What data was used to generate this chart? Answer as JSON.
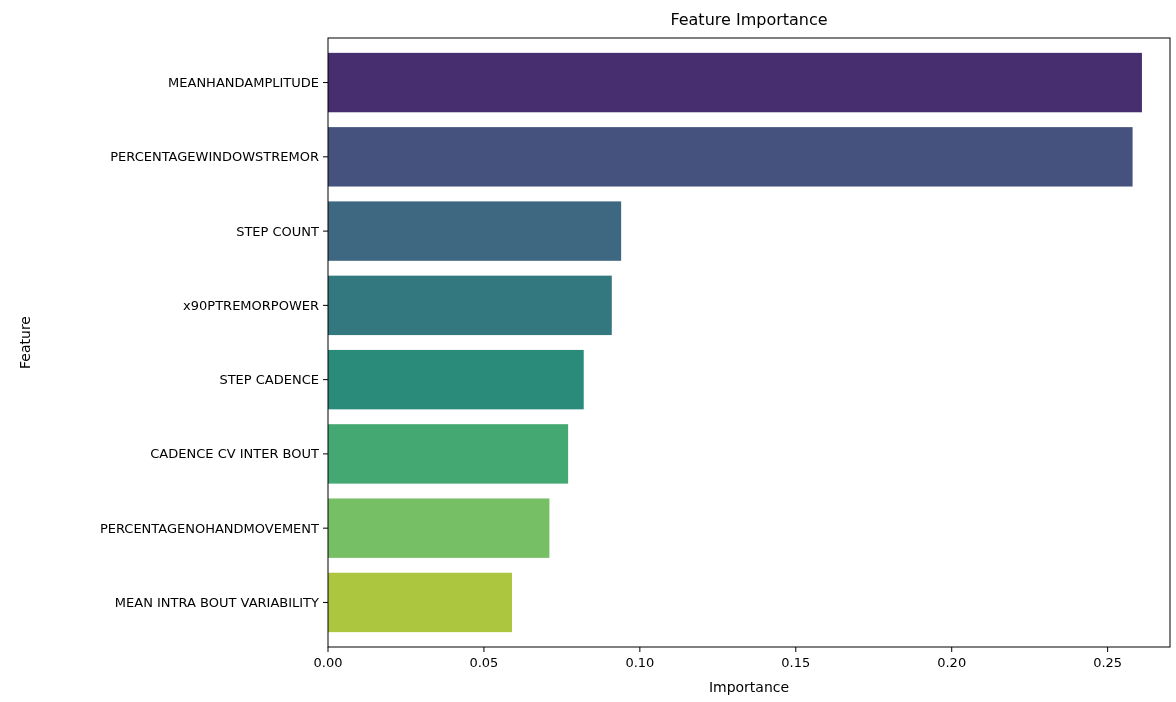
{
  "chart_data": {
    "type": "bar",
    "orientation": "horizontal",
    "title": "Feature Importance",
    "xlabel": "Importance",
    "ylabel": "Feature",
    "categories": [
      "MEANHANDAMPLITUDE",
      "PERCENTAGEWINDOWSTREMOR",
      "STEP COUNT",
      "x90PTREMORPOWER",
      "STEP CADENCE",
      "CADENCE CV INTER BOUT",
      "PERCENTAGENOHANDMOVEMENT",
      "MEAN INTRA BOUT VARIABILITY"
    ],
    "values": [
      0.261,
      0.258,
      0.094,
      0.091,
      0.082,
      0.077,
      0.071,
      0.059
    ],
    "colors": [
      "#472e6e",
      "#46527e",
      "#3e6782",
      "#33777f",
      "#2a8b7a",
      "#44a873",
      "#77bf64",
      "#adc640"
    ],
    "xlim": [
      0,
      0.27
    ],
    "xticks": [
      {
        "value": 0,
        "label": "0.00"
      },
      {
        "value": 0.05,
        "label": "0.05"
      },
      {
        "value": 0.1,
        "label": "0.10"
      },
      {
        "value": 0.15,
        "label": "0.15"
      },
      {
        "value": 0.2,
        "label": "0.20"
      },
      {
        "value": 0.25,
        "label": "0.25"
      }
    ],
    "grid": false
  }
}
